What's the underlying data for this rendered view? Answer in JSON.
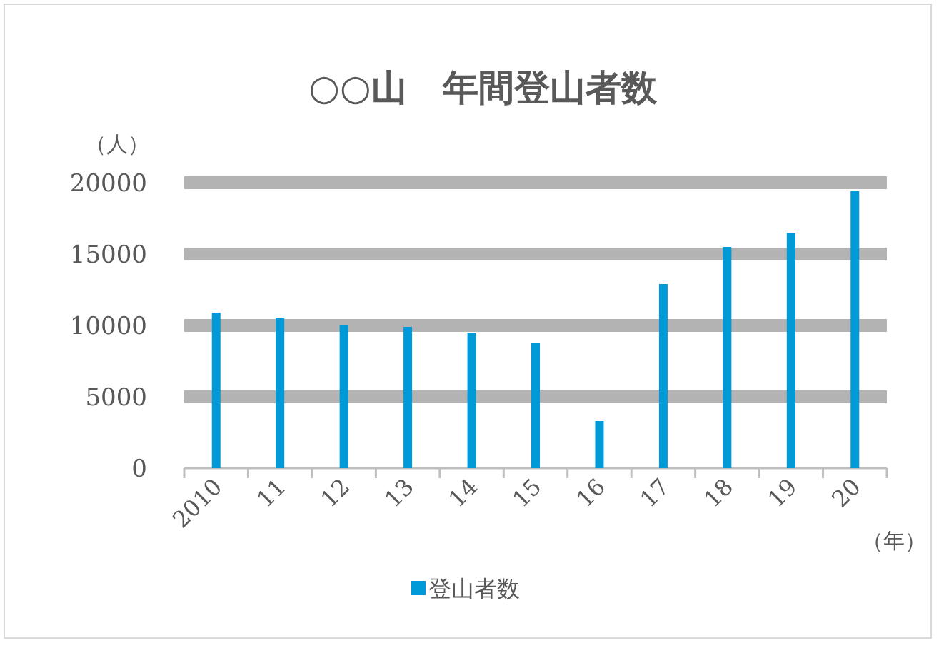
{
  "chart_data": {
    "type": "bar",
    "title": "○○山　年間登山者数",
    "ylabel": "（人）",
    "xlabel": "（年）",
    "categories": [
      "2010",
      "11",
      "12",
      "13",
      "14",
      "15",
      "16",
      "17",
      "18",
      "19",
      "20"
    ],
    "series": [
      {
        "name": "登山者数",
        "color": "#009ad8",
        "values": [
          10900,
          10500,
          10000,
          9900,
          9500,
          8800,
          3300,
          12900,
          15500,
          16500,
          19400
        ]
      }
    ],
    "ylim": [
      0,
      20000
    ],
    "yticks": [
      0,
      5000,
      10000,
      15000,
      20000
    ],
    "grid": "y",
    "legend": "bottom"
  }
}
